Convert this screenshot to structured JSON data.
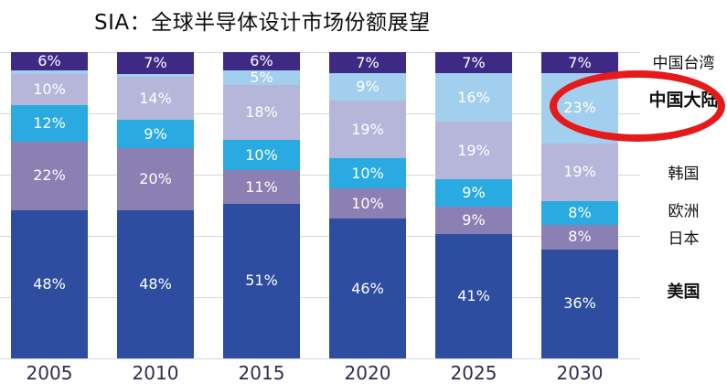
{
  "title": "SIA：全球半导体设计市场份额展望",
  "colors": {
    "taiwan": "#3e2a84",
    "china_mainland": "#a2cfee",
    "korea": "#b6b6da",
    "europe": "#29abe2",
    "japan": "#8b80b4",
    "usa": "#2e4da0",
    "highlight_circle": "#e51a1b",
    "gridline": "#d8d8d8",
    "axis_label": "#2e2e52",
    "value_label": "#ffffff"
  },
  "legend": [
    {
      "key": "taiwan",
      "label": "中国台湾",
      "bold": false
    },
    {
      "key": "china-mainland",
      "label": "中国大陆",
      "bold": true
    },
    {
      "key": "korea",
      "label": "韩国",
      "bold": false
    },
    {
      "key": "europe",
      "label": "欧洲",
      "bold": false
    },
    {
      "key": "japan",
      "label": "日本",
      "bold": false
    },
    {
      "key": "usa",
      "label": "美国",
      "bold": true
    }
  ],
  "chart_data": {
    "type": "bar",
    "subtype": "stacked-percentage-column",
    "title": "SIA：全球半导体设计市场份额展望",
    "categories": [
      "2005",
      "2010",
      "2015",
      "2020",
      "2025",
      "2030"
    ],
    "stack_order_top_to_bottom": [
      "中国台湾",
      "中国大陆",
      "韩国",
      "欧洲",
      "日本",
      "美国"
    ],
    "series": [
      {
        "key": "taiwan",
        "name": "中国台湾",
        "color": "#3e2a84",
        "values": [
          6,
          7,
          6,
          7,
          7,
          7
        ]
      },
      {
        "key": "china-mainland",
        "name": "中国大陆",
        "color": "#a2cfee",
        "values": [
          1,
          1,
          5,
          9,
          16,
          23
        ]
      },
      {
        "key": "korea",
        "name": "韩国",
        "color": "#b6b6da",
        "values": [
          10,
          14,
          18,
          19,
          19,
          19
        ]
      },
      {
        "key": "europe",
        "name": "欧洲",
        "color": "#29abe2",
        "values": [
          12,
          9,
          10,
          10,
          9,
          8
        ]
      },
      {
        "key": "japan",
        "name": "日本",
        "color": "#8b80b4",
        "values": [
          22,
          20,
          11,
          10,
          9,
          8
        ]
      },
      {
        "key": "usa",
        "name": "美国",
        "color": "#2e4da0",
        "values": [
          48,
          48,
          51,
          46,
          41,
          36
        ]
      }
    ],
    "label_format": "{value}%",
    "min_value_for_label": 2,
    "grid": true,
    "gridline_percents": [
      0,
      20,
      40,
      60,
      80,
      100
    ],
    "legend_position": "right",
    "highlighted_value": {
      "category": "2030",
      "series": "中国大陆",
      "value": 23,
      "annotation": "red-ellipse"
    }
  }
}
